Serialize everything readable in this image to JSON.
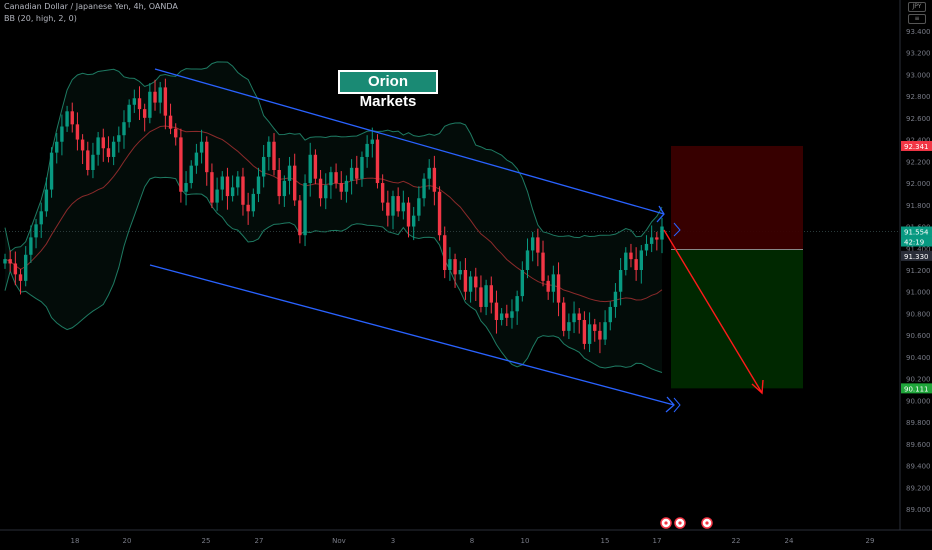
{
  "header": {
    "symbol_line": "Canadian Dollar / Japanese Yen, 4h, OANDA",
    "indicator_line": "BB (20, high, 2, 0)"
  },
  "top_icons": [
    "JPY",
    "≡"
  ],
  "brand": {
    "label": "Orion Markets"
  },
  "chart_data": {
    "type": "candlestick",
    "instrument": "CADJPY",
    "x_ticks": [
      "18",
      "20",
      "25",
      "27",
      "Nov",
      "3",
      "8",
      "10",
      "15",
      "17",
      "22",
      "24",
      "29"
    ],
    "y_ticks": [
      "93.400",
      "93.200",
      "93.000",
      "92.800",
      "92.600",
      "92.400",
      "92.200",
      "92.000",
      "91.800",
      "91.600",
      "91.400",
      "91.200",
      "91.000",
      "90.800",
      "90.600",
      "90.400",
      "90.200",
      "90.000",
      "89.800",
      "89.600",
      "89.400",
      "89.200",
      "89.000"
    ],
    "ylim": [
      88.9,
      93.5
    ],
    "price_tags": [
      {
        "label": "92.341",
        "value": 92.341,
        "color": "#f23645"
      },
      {
        "label": "91.554",
        "value": 91.554,
        "color": "#089981"
      },
      {
        "label": "42:19",
        "value": null,
        "color": "#089981"
      },
      {
        "label": "91.330",
        "value": 91.33,
        "color": "#2a2e39"
      },
      {
        "label": "90.111",
        "value": 90.111,
        "color": "#1fa53a"
      }
    ],
    "grid": false,
    "closes": [
      91.3,
      91.26,
      91.16,
      91.1,
      91.34,
      91.5,
      91.62,
      91.74,
      91.94,
      92.28,
      92.38,
      92.52,
      92.66,
      92.54,
      92.4,
      92.3,
      92.12,
      92.26,
      92.42,
      92.32,
      92.24,
      92.38,
      92.44,
      92.56,
      92.72,
      92.78,
      92.68,
      92.6,
      92.84,
      92.74,
      92.88,
      92.62,
      92.5,
      92.42,
      91.92,
      92.0,
      92.16,
      92.28,
      92.38,
      92.1,
      91.82,
      91.94,
      92.06,
      91.88,
      91.96,
      92.06,
      91.8,
      91.74,
      91.9,
      92.06,
      92.24,
      92.38,
      92.12,
      91.88,
      92.02,
      92.16,
      91.84,
      91.52,
      92.0,
      92.26,
      92.04,
      91.86,
      91.98,
      92.1,
      92.0,
      91.92,
      92.02,
      92.14,
      92.04,
      92.24,
      92.36,
      92.4,
      92.0,
      91.82,
      91.7,
      91.88,
      91.74,
      91.82,
      91.6,
      91.7,
      91.86,
      92.04,
      92.14,
      91.92,
      91.52,
      91.2,
      91.3,
      91.16,
      91.2,
      91.0,
      91.14,
      91.04,
      90.86,
      91.06,
      90.9,
      90.74,
      90.8,
      90.76,
      90.82,
      90.96,
      91.2,
      91.38,
      91.5,
      91.36,
      91.1,
      91.0,
      91.16,
      90.9,
      90.64,
      90.72,
      90.8,
      90.74,
      90.52,
      90.7,
      90.64,
      90.56,
      90.72,
      90.86,
      91.0,
      91.2,
      91.36,
      91.3,
      91.2,
      91.38,
      91.44,
      91.5,
      91.48,
      91.6
    ],
    "bb_upper_start": 92.0,
    "levels": {
      "entry": 91.554,
      "target": 90.111,
      "stop": 92.341,
      "projection_end": 89.95
    }
  }
}
